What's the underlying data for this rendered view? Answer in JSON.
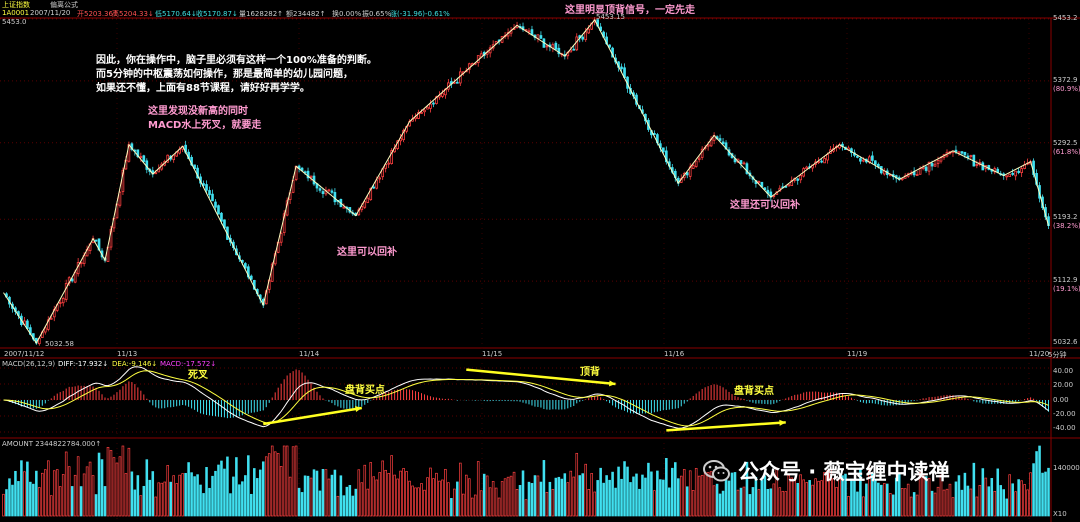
{
  "header": {
    "index_name": "上证指数",
    "sub": "偏离公式",
    "code": "1A0001",
    "date": "2007/11/20",
    "open": "开5203.36↑",
    "high": "高5204.33↓",
    "low": "低5170.64↓",
    "close": "收5170.87↓",
    "volume": "量1628282↑",
    "amount": "额234482↑",
    "pct": "换0.00%",
    "amp": "振0.65%",
    "change": "涨(-31.96)-0.61%",
    "top_price": "5453.0",
    "period": "5分钟"
  },
  "annotations": {
    "main": [
      "因此，你在操作中，脑子里必须有这样一个100%准备的判断。",
      "而5分钟的中枢震荡如何操作，那是最简单的幼儿园问题，",
      "如果还不懂，上面有88节课程，请好好再学学。"
    ],
    "no_new_high": [
      "这里发现没新高的同时",
      "MACD水上死叉，就要走"
    ],
    "top_signal": "这里明显顶背信号，一定先走",
    "buy_back_1": "这里可以回补",
    "buy_back_2": "这里还可以回补",
    "death_cross": "死叉",
    "bottom_div_1": "盘背买点",
    "top_div": "顶背",
    "bottom_div_2": "盘背买点",
    "high_label": "5453.15",
    "low_label": "5032.58"
  },
  "chart_data": {
    "type": "candlestick",
    "ylim": [
      5032.6,
      5453.2
    ],
    "price_ticks": [
      "5453.2",
      "5372.9",
      "5292.5",
      "5193.2",
      "5112.9",
      "5032.6"
    ],
    "pct_ticks": [
      "(80.9%)",
      "(61.8%)",
      "(38.2%)",
      "(19.1%)"
    ],
    "x_ticks": [
      "2007/11/12",
      "11/13",
      "11/14",
      "11/15",
      "11/16",
      "11/19",
      "11/20"
    ],
    "bi_points": [
      [
        0,
        5098
      ],
      [
        11,
        5032.6
      ],
      [
        30,
        5168
      ],
      [
        34,
        5140
      ],
      [
        42,
        5290
      ],
      [
        50,
        5252
      ],
      [
        60,
        5288
      ],
      [
        87,
        5082
      ],
      [
        98,
        5262
      ],
      [
        118,
        5198
      ],
      [
        136,
        5320
      ],
      [
        172,
        5445
      ],
      [
        188,
        5405
      ],
      [
        198,
        5452
      ],
      [
        226,
        5240
      ],
      [
        238,
        5302
      ],
      [
        257,
        5222
      ],
      [
        280,
        5290
      ],
      [
        300,
        5245
      ],
      [
        318,
        5282
      ],
      [
        335,
        5250
      ],
      [
        344,
        5268
      ],
      [
        350,
        5185
      ]
    ],
    "colors": {
      "up": "#ff4040",
      "down": "#40e0f0",
      "bi_line": "#ffffc0"
    }
  },
  "macd": {
    "title": "MACD(26,12,9)",
    "diff": "DIFF:-17.932↓",
    "dea": "DEA:-9.146↓",
    "macd": "MACD:-17.572↓",
    "ticks": [
      "40.00",
      "20.00",
      "0.00",
      "-20.00",
      "-40.00"
    ],
    "ylim": [
      -45,
      45
    ],
    "arrows": [
      {
        "from": [
          87,
          -30
        ],
        "to": [
          120,
          -10
        ]
      },
      {
        "from": [
          155,
          38
        ],
        "to": [
          205,
          20
        ]
      },
      {
        "from": [
          222,
          -38
        ],
        "to": [
          262,
          -28
        ]
      }
    ]
  },
  "volume": {
    "title": "AMOUNT 2344822784.000↑",
    "ticks": [
      "1400000",
      "X10"
    ],
    "ylim": [
      0,
      1400000
    ]
  },
  "watermark": "公众号 · 薇宝缠中读禅"
}
